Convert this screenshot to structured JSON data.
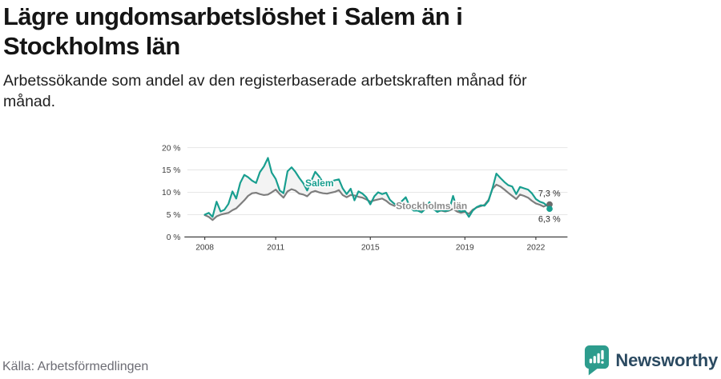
{
  "header": {
    "title": "Lägre ungdomsarbetslöshet i Salem än i Stockholms län",
    "subtitle": "Arbetssökande som andel av den registerbaserade arbetskraften månad för månad."
  },
  "footer": {
    "source": "Källa: Arbetsförmedlingen",
    "brand": "Newsworthy"
  },
  "colors": {
    "salem": "#189e8f",
    "stockholm": "#7d7d7d",
    "stockholm_dot": "#6c6c6c",
    "band": "#f1f1f1",
    "grid": "#e2e2e2",
    "axis": "#404040",
    "tick_text": "#3d3d3d",
    "value_text": "#2b2b2b",
    "brand_teal": "#2d9c8d",
    "brand_navy": "#2b4a61"
  },
  "chart_data": {
    "type": "line",
    "title": "Lägre ungdomsarbetslöshet i Salem än i Stockholms län",
    "xlabel": "",
    "ylabel": "Arbetssökande som andel av den registerbaserade arbetskraften",
    "ylim": [
      0,
      20
    ],
    "y_ticks": [
      0,
      5,
      10,
      15,
      20
    ],
    "y_tick_suffix": " %",
    "x_ticks": [
      2008,
      2011,
      2015,
      2019,
      2022
    ],
    "grid": true,
    "legend_position": "inline-labels",
    "x": [
      2008.0,
      2008.17,
      2008.33,
      2008.5,
      2008.67,
      2008.83,
      2009.0,
      2009.17,
      2009.33,
      2009.5,
      2009.67,
      2009.83,
      2010.0,
      2010.17,
      2010.33,
      2010.5,
      2010.67,
      2010.83,
      2011.0,
      2011.17,
      2011.33,
      2011.5,
      2011.67,
      2011.83,
      2012.0,
      2012.17,
      2012.33,
      2012.5,
      2012.67,
      2012.83,
      2013.0,
      2013.17,
      2013.33,
      2013.5,
      2013.67,
      2013.83,
      2014.0,
      2014.17,
      2014.33,
      2014.5,
      2014.67,
      2014.83,
      2015.0,
      2015.17,
      2015.33,
      2015.5,
      2015.67,
      2015.83,
      2016.0,
      2016.17,
      2016.33,
      2016.5,
      2016.67,
      2016.83,
      2017.0,
      2017.17,
      2017.33,
      2017.5,
      2017.67,
      2017.83,
      2018.0,
      2018.17,
      2018.33,
      2018.5,
      2018.67,
      2018.83,
      2019.0,
      2019.17,
      2019.33,
      2019.5,
      2019.67,
      2019.83,
      2020.0,
      2020.17,
      2020.33,
      2020.5,
      2020.67,
      2020.83,
      2021.0,
      2021.17,
      2021.33,
      2021.5,
      2021.67,
      2021.83,
      2022.0,
      2022.17,
      2022.33,
      2022.5,
      2022.58
    ],
    "series": [
      {
        "name": "Salem",
        "color": "#189e8f",
        "dot_color": "#189e8f",
        "end_label": "6,3 %",
        "end_value": 6.3,
        "values": [
          5.0,
          5.4,
          4.5,
          7.9,
          5.7,
          6.1,
          7.4,
          10.2,
          8.6,
          12.1,
          13.9,
          13.4,
          12.6,
          12.1,
          14.5,
          15.8,
          17.7,
          14.4,
          13.0,
          10.4,
          9.8,
          14.7,
          15.6,
          14.6,
          13.2,
          12.0,
          10.4,
          12.5,
          14.6,
          13.6,
          12.2,
          12.0,
          12.4,
          12.7,
          12.9,
          10.9,
          9.6,
          10.8,
          8.2,
          10.2,
          9.7,
          8.9,
          7.3,
          9.1,
          10.0,
          9.6,
          9.9,
          8.3,
          7.5,
          7.0,
          8.0,
          8.9,
          6.8,
          5.9,
          5.9,
          5.5,
          6.3,
          7.8,
          6.3,
          5.6,
          6.0,
          5.8,
          6.0,
          9.2,
          6.2,
          5.7,
          5.9,
          4.5,
          5.9,
          6.7,
          7.1,
          7.0,
          8.1,
          11.0,
          14.2,
          13.2,
          12.3,
          11.6,
          11.3,
          9.6,
          11.2,
          10.9,
          10.6,
          9.8,
          8.5,
          7.9,
          7.6,
          6.9,
          6.3
        ]
      },
      {
        "name": "Stockholms län",
        "color": "#7d7d7d",
        "dot_color": "#6c6c6c",
        "end_label": "7,3 %",
        "end_value": 7.3,
        "values": [
          4.9,
          4.5,
          3.8,
          4.6,
          5.0,
          5.2,
          5.4,
          6.0,
          6.4,
          7.3,
          8.2,
          9.2,
          9.8,
          9.9,
          9.6,
          9.4,
          9.5,
          10.0,
          10.6,
          9.6,
          8.8,
          10.2,
          10.7,
          10.4,
          9.7,
          9.5,
          9.1,
          10.0,
          10.3,
          10.0,
          9.8,
          9.7,
          9.9,
          10.1,
          10.5,
          9.4,
          8.9,
          9.4,
          9.3,
          9.0,
          8.8,
          8.4,
          7.9,
          8.2,
          8.4,
          8.6,
          8.1,
          7.4,
          7.0,
          6.8,
          6.9,
          7.3,
          6.7,
          6.3,
          6.3,
          6.0,
          6.2,
          6.7,
          6.2,
          5.8,
          5.9,
          5.7,
          5.9,
          6.3,
          5.7,
          5.4,
          5.6,
          5.2,
          6.1,
          6.6,
          6.9,
          7.2,
          8.3,
          10.8,
          11.7,
          11.3,
          10.6,
          9.9,
          9.2,
          8.5,
          9.5,
          9.2,
          8.8,
          8.1,
          7.5,
          7.2,
          6.8,
          7.2,
          7.3
        ]
      }
    ],
    "annotations": [
      {
        "name": "salem-series-label",
        "text": "Salem",
        "x": 2012.25,
        "y": 11.35,
        "color": "#189e8f",
        "weight": "bold",
        "size": 20,
        "halo": true
      },
      {
        "name": "stockholm-series-label",
        "text": "Stockholms län",
        "x": 2016.08,
        "y": 6.27,
        "color": "#8b8b8b",
        "weight": "bold",
        "size": 20,
        "halo": true
      },
      {
        "name": "stockholm-end-value",
        "text": "7,3 %",
        "x": 2022.1,
        "y": 9.1,
        "color": "#2b2b2b",
        "weight": "normal",
        "size": 18,
        "halo": false
      },
      {
        "name": "salem-end-value",
        "text": "6,3 %",
        "x": 2022.1,
        "y": 3.4,
        "color": "#2b2b2b",
        "weight": "normal",
        "size": 18,
        "halo": false
      }
    ]
  }
}
